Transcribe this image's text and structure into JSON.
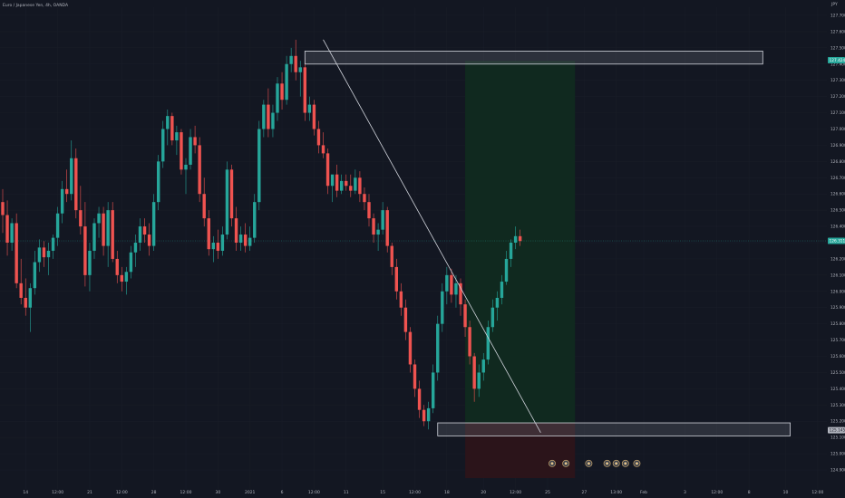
{
  "window": {
    "title": "Euro / Japanese Yen, 4h, OANDA",
    "currency": "JPY"
  },
  "colors": {
    "background": "#131722",
    "bull": "#26a69a",
    "bear": "#ef5350",
    "text": "#b2b5be",
    "profit_zone": "#10291f",
    "loss_zone": "#2b141a",
    "grid": "#1a1e29"
  },
  "chart_data": {
    "type": "candlestick",
    "instrument": "Euro / Japanese Yen",
    "timeframe": "4h",
    "source": "OANDA",
    "ylim": [
      124.85,
      127.75
    ],
    "y_ticks": [
      "127.700",
      "127.600",
      "127.500",
      "127.400",
      "127.300",
      "127.200",
      "127.100",
      "127.000",
      "126.900",
      "126.800",
      "126.700",
      "126.600",
      "126.500",
      "126.400",
      "126.300",
      "126.200",
      "126.100",
      "126.000",
      "125.900",
      "125.800",
      "125.700",
      "125.600",
      "125.500",
      "125.400",
      "125.300",
      "125.200",
      "125.100",
      "125.000",
      "124.900"
    ],
    "x_ticks": [
      {
        "label": "14",
        "bar": 5
      },
      {
        "label": "12:00",
        "bar": 12
      },
      {
        "label": "21",
        "bar": 19
      },
      {
        "label": "12:00",
        "bar": 26
      },
      {
        "label": "28",
        "bar": 33
      },
      {
        "label": "12:00",
        "bar": 40
      },
      {
        "label": "30",
        "bar": 47
      },
      {
        "label": "2021",
        "bar": 54
      },
      {
        "label": "6",
        "bar": 61
      },
      {
        "label": "12:00",
        "bar": 68
      },
      {
        "label": "11",
        "bar": 75
      },
      {
        "label": "15",
        "bar": 83
      },
      {
        "label": "12:00",
        "bar": 90
      },
      {
        "label": "18",
        "bar": 97
      },
      {
        "label": "20",
        "bar": 105
      },
      {
        "label": "12:00",
        "bar": 112
      },
      {
        "label": "25",
        "bar": 119
      },
      {
        "label": "27",
        "bar": 127
      },
      {
        "label": "13:00",
        "bar": 134
      },
      {
        "label": "Feb",
        "bar": 140
      },
      {
        "label": "3",
        "bar": 149
      },
      {
        "label": "12:00",
        "bar": 156
      },
      {
        "label": "8",
        "bar": 163
      },
      {
        "label": "10",
        "bar": 171
      },
      {
        "label": "12:00",
        "bar": 178
      }
    ],
    "price_labels": [
      {
        "label": "127.424",
        "value": 127.424,
        "color": "#26a69a"
      },
      {
        "label": "126.311",
        "value": 126.311,
        "color": "#26a69a"
      },
      {
        "label": "125.145",
        "value": 125.145,
        "color": "#b2b5be"
      }
    ],
    "current_price": 126.311,
    "zones": [
      {
        "kind": "resistance",
        "from_bar": 66,
        "to_bar": 166,
        "low": 127.4,
        "high": 127.48
      },
      {
        "kind": "support",
        "from_bar": 95,
        "to_bar": 172,
        "low": 125.11,
        "high": 125.19
      }
    ],
    "position": {
      "from_bar": 101,
      "to_bar": 125,
      "entry": 125.19,
      "target": 127.42,
      "stop": 124.85
    },
    "trendline": {
      "from_bar": 70,
      "from_price": 127.55,
      "to_bar": 117.5,
      "to_price": 125.13
    },
    "event_markers": [
      {
        "bar": 120,
        "value": 124.94
      },
      {
        "bar": 123,
        "value": 124.94
      },
      {
        "bar": 128,
        "value": 124.94
      },
      {
        "bar": 132,
        "value": 124.94
      },
      {
        "bar": 134,
        "value": 124.94
      },
      {
        "bar": 136,
        "value": 124.94
      },
      {
        "bar": 138.5,
        "value": 124.94
      }
    ],
    "candles": [
      [
        126.55,
        126.63,
        126.36,
        126.47
      ],
      [
        126.47,
        126.56,
        126.22,
        126.3
      ],
      [
        126.3,
        126.45,
        126.25,
        126.42
      ],
      [
        126.42,
        126.48,
        126.02,
        126.05
      ],
      [
        126.05,
        126.2,
        125.92,
        125.96
      ],
      [
        125.96,
        126.08,
        125.85,
        125.9
      ],
      [
        125.9,
        126.05,
        125.75,
        126.02
      ],
      [
        126.02,
        126.25,
        125.98,
        126.18
      ],
      [
        126.18,
        126.32,
        126.12,
        126.27
      ],
      [
        126.27,
        126.31,
        126.15,
        126.21
      ],
      [
        126.21,
        126.3,
        126.1,
        126.25
      ],
      [
        126.25,
        126.35,
        126.2,
        126.33
      ],
      [
        126.33,
        126.52,
        126.28,
        126.48
      ],
      [
        126.48,
        126.68,
        126.42,
        126.63
      ],
      [
        126.63,
        126.75,
        126.55,
        126.6
      ],
      [
        126.6,
        126.93,
        126.56,
        126.82
      ],
      [
        126.82,
        126.88,
        126.45,
        126.5
      ],
      [
        126.5,
        126.65,
        126.35,
        126.4
      ],
      [
        126.4,
        126.55,
        126.03,
        126.1
      ],
      [
        126.1,
        126.3,
        126.0,
        126.25
      ],
      [
        126.25,
        126.45,
        126.2,
        126.42
      ],
      [
        126.42,
        126.52,
        126.33,
        126.48
      ],
      [
        126.48,
        126.52,
        126.22,
        126.28
      ],
      [
        126.28,
        126.55,
        126.15,
        126.5
      ],
      [
        126.5,
        126.55,
        126.18,
        126.2
      ],
      [
        126.2,
        126.25,
        126.05,
        126.1
      ],
      [
        126.1,
        126.15,
        126.0,
        126.06
      ],
      [
        126.06,
        126.15,
        125.98,
        126.12
      ],
      [
        126.12,
        126.28,
        126.08,
        126.24
      ],
      [
        126.24,
        126.35,
        126.15,
        126.3
      ],
      [
        126.3,
        126.45,
        126.25,
        126.4
      ],
      [
        126.4,
        126.45,
        126.3,
        126.35
      ],
      [
        126.35,
        126.42,
        126.22,
        126.28
      ],
      [
        126.28,
        126.6,
        126.25,
        126.55
      ],
      [
        126.55,
        126.84,
        126.5,
        126.8
      ],
      [
        126.8,
        127.05,
        126.76,
        127.0
      ],
      [
        127.0,
        127.12,
        126.9,
        127.08
      ],
      [
        127.08,
        127.1,
        126.9,
        126.93
      ],
      [
        126.93,
        127.02,
        126.84,
        126.98
      ],
      [
        126.98,
        127.0,
        126.72,
        126.75
      ],
      [
        126.75,
        126.82,
        126.6,
        126.78
      ],
      [
        126.78,
        127.0,
        126.75,
        126.95
      ],
      [
        126.95,
        127.02,
        126.85,
        126.9
      ],
      [
        126.9,
        126.95,
        126.55,
        126.6
      ],
      [
        126.6,
        126.7,
        126.4,
        126.45
      ],
      [
        126.45,
        126.5,
        126.22,
        126.26
      ],
      [
        126.26,
        126.34,
        126.18,
        126.3
      ],
      [
        126.3,
        126.38,
        126.2,
        126.25
      ],
      [
        126.25,
        126.4,
        126.22,
        126.35
      ],
      [
        126.35,
        126.8,
        126.32,
        126.75
      ],
      [
        126.75,
        126.78,
        126.4,
        126.45
      ],
      [
        126.45,
        126.52,
        126.25,
        126.3
      ],
      [
        126.3,
        126.4,
        126.25,
        126.35
      ],
      [
        126.35,
        126.42,
        126.24,
        126.28
      ],
      [
        126.28,
        126.4,
        126.25,
        126.33
      ],
      [
        126.33,
        126.6,
        126.3,
        126.55
      ],
      [
        126.55,
        127.05,
        126.5,
        127.0
      ],
      [
        127.0,
        127.18,
        126.95,
        127.15
      ],
      [
        127.15,
        127.25,
        126.95,
        127.0
      ],
      [
        127.0,
        127.15,
        126.95,
        127.1
      ],
      [
        127.1,
        127.32,
        127.05,
        127.28
      ],
      [
        127.28,
        127.35,
        127.12,
        127.18
      ],
      [
        127.18,
        127.45,
        127.15,
        127.4
      ],
      [
        127.4,
        127.5,
        127.35,
        127.45
      ],
      [
        127.45,
        127.55,
        127.3,
        127.35
      ],
      [
        127.35,
        127.42,
        127.2,
        127.38
      ],
      [
        127.38,
        127.44,
        127.05,
        127.1
      ],
      [
        127.1,
        127.2,
        127.05,
        127.15
      ],
      [
        127.15,
        127.18,
        126.96,
        127.0
      ],
      [
        127.0,
        127.05,
        126.85,
        126.9
      ],
      [
        126.9,
        126.98,
        126.82,
        126.85
      ],
      [
        126.85,
        126.88,
        126.6,
        126.65
      ],
      [
        126.65,
        126.7,
        126.55,
        126.72
      ],
      [
        126.72,
        126.78,
        126.58,
        126.62
      ],
      [
        126.62,
        126.72,
        126.6,
        126.68
      ],
      [
        126.68,
        126.72,
        126.62,
        126.65
      ],
      [
        126.65,
        126.72,
        126.58,
        126.62
      ],
      [
        126.62,
        126.75,
        126.6,
        126.7
      ],
      [
        126.7,
        126.74,
        126.55,
        126.6
      ],
      [
        126.6,
        126.64,
        126.5,
        126.55
      ],
      [
        126.55,
        126.6,
        126.4,
        126.45
      ],
      [
        126.45,
        126.48,
        126.3,
        126.35
      ],
      [
        126.35,
        126.42,
        126.25,
        126.38
      ],
      [
        126.38,
        126.55,
        126.35,
        126.5
      ],
      [
        126.5,
        126.52,
        126.24,
        126.28
      ],
      [
        126.28,
        126.3,
        126.1,
        126.15
      ],
      [
        126.15,
        126.2,
        125.95,
        126.0
      ],
      [
        126.0,
        126.05,
        125.85,
        125.9
      ],
      [
        125.9,
        125.95,
        125.7,
        125.75
      ],
      [
        125.75,
        125.78,
        125.5,
        125.55
      ],
      [
        125.55,
        125.58,
        125.35,
        125.4
      ],
      [
        125.4,
        125.45,
        125.22,
        125.27
      ],
      [
        125.27,
        125.3,
        125.17,
        125.2
      ],
      [
        125.2,
        125.32,
        125.15,
        125.28
      ],
      [
        125.28,
        125.55,
        125.25,
        125.5
      ],
      [
        125.5,
        125.85,
        125.45,
        125.8
      ],
      [
        125.8,
        126.05,
        125.75,
        126.0
      ],
      [
        126.0,
        126.15,
        125.92,
        126.1
      ],
      [
        126.1,
        126.14,
        125.93,
        125.98
      ],
      [
        125.98,
        126.1,
        125.9,
        126.05
      ],
      [
        126.05,
        126.08,
        125.85,
        125.92
      ],
      [
        125.92,
        125.95,
        125.72,
        125.78
      ],
      [
        125.78,
        125.82,
        125.55,
        125.6
      ],
      [
        125.6,
        125.62,
        125.32,
        125.4
      ],
      [
        125.4,
        125.55,
        125.35,
        125.5
      ],
      [
        125.5,
        125.62,
        125.45,
        125.58
      ],
      [
        125.58,
        125.82,
        125.55,
        125.78
      ],
      [
        125.78,
        125.95,
        125.75,
        125.9
      ],
      [
        125.9,
        126.0,
        125.82,
        125.96
      ],
      [
        125.96,
        126.1,
        125.92,
        126.06
      ],
      [
        126.06,
        126.25,
        126.04,
        126.2
      ],
      [
        126.2,
        126.32,
        126.15,
        126.3
      ],
      [
        126.3,
        126.4,
        126.26,
        126.34
      ],
      [
        126.34,
        126.38,
        126.28,
        126.31
      ]
    ]
  }
}
